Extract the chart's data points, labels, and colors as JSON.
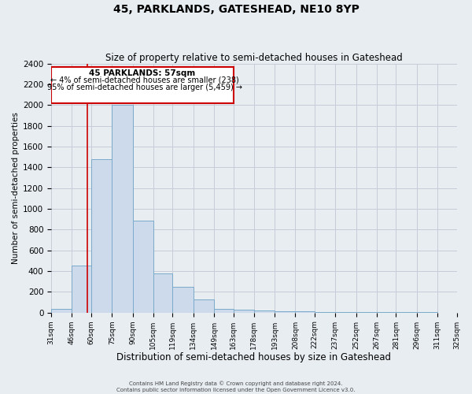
{
  "title": "45, PARKLANDS, GATESHEAD, NE10 8YP",
  "subtitle": "Size of property relative to semi-detached houses in Gateshead",
  "xlabel": "Distribution of semi-detached houses by size in Gateshead",
  "ylabel": "Number of semi-detached properties",
  "bin_edges": [
    31,
    46,
    60,
    75,
    90,
    105,
    119,
    134,
    149,
    163,
    178,
    193,
    208,
    222,
    237,
    252,
    267,
    281,
    296,
    311,
    325
  ],
  "bar_heights": [
    35,
    450,
    1480,
    2000,
    890,
    375,
    250,
    130,
    35,
    25,
    20,
    15,
    10,
    8,
    5,
    5,
    3,
    2,
    2,
    1
  ],
  "bar_color": "#ccdaeb",
  "bar_edge_color": "#7aaaca",
  "grid_color": "#c5cdd8",
  "background_color": "#e8edf2",
  "red_line_x": 57,
  "annotation_title": "45 PARKLANDS: 57sqm",
  "annotation_line1": "← 4% of semi-detached houses are smaller (238)",
  "annotation_line2": "95% of semi-detached houses are larger (5,459) →",
  "annotation_box_color": "#ffffff",
  "annotation_border_color": "#cc0000",
  "ylim": [
    0,
    2400
  ],
  "yticks": [
    0,
    200,
    400,
    600,
    800,
    1000,
    1200,
    1400,
    1600,
    1800,
    2000,
    2200,
    2400
  ],
  "tick_labels": [
    "31sqm",
    "46sqm",
    "60sqm",
    "75sqm",
    "90sqm",
    "105sqm",
    "119sqm",
    "134sqm",
    "149sqm",
    "163sqm",
    "178sqm",
    "193sqm",
    "208sqm",
    "222sqm",
    "237sqm",
    "252sqm",
    "267sqm",
    "281sqm",
    "296sqm",
    "311sqm",
    "325sqm"
  ],
  "footer1": "Contains HM Land Registry data © Crown copyright and database right 2024.",
  "footer2": "Contains public sector information licensed under the Open Government Licence v3.0."
}
